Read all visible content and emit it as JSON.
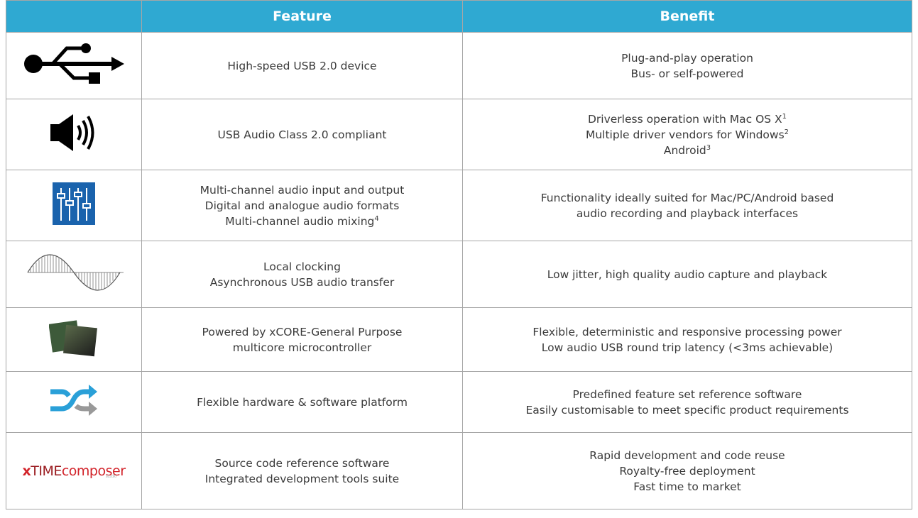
{
  "table": {
    "header": [
      "Feature",
      "Benefit"
    ],
    "rows": [
      {
        "feature": [
          {
            "text": "High-speed USB 2.0 device"
          }
        ],
        "benefit": [
          {
            "text": "Plug-and-play operation"
          },
          {
            "text": "Bus- or self-powered"
          }
        ]
      },
      {
        "feature": [
          {
            "text": "USB Audio Class 2.0 compliant"
          }
        ],
        "benefit": [
          {
            "text": "Driverless operation with Mac OS X",
            "sup": "1"
          },
          {
            "text": "Multiple driver vendors for Windows",
            "sup": "2"
          },
          {
            "text": "Android",
            "sup": "3"
          }
        ]
      },
      {
        "feature": [
          {
            "text": "Multi-channel audio input and output"
          },
          {
            "text": "Digital and analogue audio formats"
          },
          {
            "text": "Multi-channel audio mixing",
            "sup": "4"
          }
        ],
        "benefit": [
          {
            "text": "Functionality ideally suited for Mac/PC/Android based"
          },
          {
            "text": "audio recording and playback interfaces"
          }
        ]
      },
      {
        "feature": [
          {
            "text": "Local clocking"
          },
          {
            "text": "Asynchronous USB audio transfer"
          }
        ],
        "benefit": [
          {
            "text": "Low jitter, high quality audio capture and playback"
          }
        ]
      },
      {
        "feature": [
          {
            "text": "Powered by xCORE-General Purpose"
          },
          {
            "text": "multicore microcontroller"
          }
        ],
        "benefit": [
          {
            "text": "Flexible, deterministic and responsive processing power"
          },
          {
            "text": "Low audio USB round trip latency (<3ms achievable)"
          }
        ]
      },
      {
        "feature": [
          {
            "text": "Flexible hardware & software platform"
          }
        ],
        "benefit": [
          {
            "text": "Predefined feature set reference software"
          },
          {
            "text": "Easily customisable to meet specific product requirements"
          }
        ]
      },
      {
        "feature": [
          {
            "text": "Source code reference software"
          },
          {
            "text": "Integrated development tools suite"
          }
        ],
        "benefit": [
          {
            "text": "Rapid development and code reuse"
          },
          {
            "text": "Royalty-free deployment"
          },
          {
            "text": "Fast time to market"
          }
        ]
      }
    ],
    "logo": {
      "parts": [
        "x",
        "TIME",
        "composer"
      ],
      "sub": "studio"
    }
  }
}
